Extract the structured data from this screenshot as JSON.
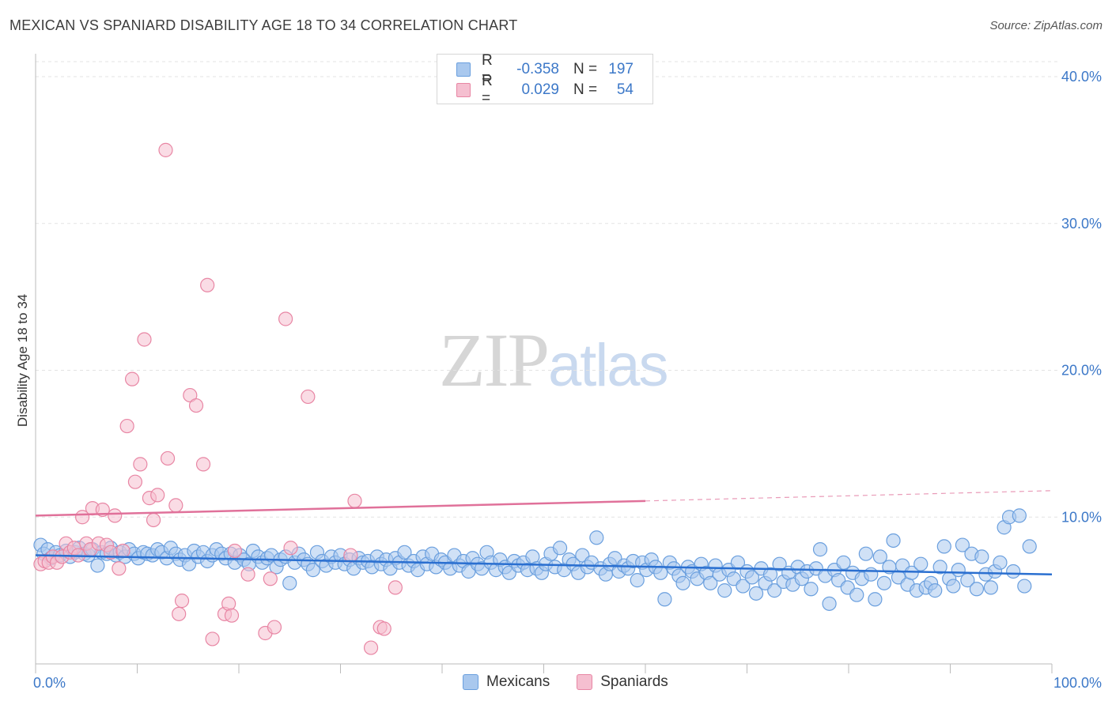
{
  "chart_data": {
    "type": "scatter",
    "title": "MEXICAN VS SPANIARD DISABILITY AGE 18 TO 34 CORRELATION CHART",
    "source": "Source: ZipAtlas.com",
    "ylabel": "Disability Age 18 to 34",
    "xlabel": "",
    "xlim": [
      0,
      100
    ],
    "ylim": [
      0,
      40
    ],
    "x_tick_labels": [
      "0.0%",
      "100.0%"
    ],
    "y_tick_labels": [
      "10.0%",
      "20.0%",
      "30.0%",
      "40.0%"
    ],
    "y_tick_values": [
      10,
      20,
      30,
      40
    ],
    "legend": {
      "rows": [
        {
          "r_label": "R =",
          "r_value": "-0.358",
          "n_label": "N =",
          "n_value": "197"
        },
        {
          "r_label": "R =",
          "r_value": "0.029",
          "n_label": "N =",
          "n_value": "54"
        }
      ]
    },
    "series": [
      {
        "name": "Mexicans",
        "color": "#6a9fde",
        "fill": "#a9c8ee",
        "trend": {
          "x0": 0,
          "y0": 7.4,
          "x1": 100,
          "y1": 6.1
        },
        "points": [
          [
            0.5,
            8.1
          ],
          [
            0.8,
            7.5
          ],
          [
            1.2,
            7.8
          ],
          [
            1.5,
            7.2
          ],
          [
            2,
            7.6
          ],
          [
            2.4,
            7.4
          ],
          [
            3,
            7.7
          ],
          [
            3.4,
            7.3
          ],
          [
            3.9,
            7.6
          ],
          [
            4.3,
            7.9
          ],
          [
            4.8,
            7.5
          ],
          [
            5.2,
            7.4
          ],
          [
            5.6,
            7.8
          ],
          [
            6.1,
            6.7
          ],
          [
            6.5,
            7.6
          ],
          [
            7,
            7.5
          ],
          [
            7.4,
            7.9
          ],
          [
            7.9,
            7.4
          ],
          [
            8.3,
            7.6
          ],
          [
            8.8,
            7.3
          ],
          [
            9.2,
            7.8
          ],
          [
            9.7,
            7.5
          ],
          [
            10.1,
            7.2
          ],
          [
            10.6,
            7.6
          ],
          [
            11,
            7.5
          ],
          [
            11.5,
            7.4
          ],
          [
            12,
            7.8
          ],
          [
            12.4,
            7.6
          ],
          [
            12.9,
            7.2
          ],
          [
            13.3,
            7.9
          ],
          [
            13.8,
            7.5
          ],
          [
            14.2,
            7.1
          ],
          [
            14.7,
            7.4
          ],
          [
            15.1,
            6.8
          ],
          [
            15.6,
            7.7
          ],
          [
            16,
            7.3
          ],
          [
            16.5,
            7.6
          ],
          [
            16.9,
            7.0
          ],
          [
            17.4,
            7.4
          ],
          [
            17.8,
            7.8
          ],
          [
            18.3,
            7.5
          ],
          [
            18.7,
            7.2
          ],
          [
            19.2,
            7.5
          ],
          [
            19.6,
            6.9
          ],
          [
            20.1,
            7.4
          ],
          [
            20.5,
            7.1
          ],
          [
            21,
            6.8
          ],
          [
            21.4,
            7.7
          ],
          [
            21.9,
            7.3
          ],
          [
            22.3,
            6.9
          ],
          [
            22.8,
            7.2
          ],
          [
            23.2,
            7.4
          ],
          [
            23.7,
            6.6
          ],
          [
            24.1,
            7.1
          ],
          [
            24.6,
            7.3
          ],
          [
            25,
            5.5
          ],
          [
            25.5,
            6.9
          ],
          [
            25.9,
            7.5
          ],
          [
            26.4,
            7.1
          ],
          [
            26.8,
            6.8
          ],
          [
            27.3,
            6.4
          ],
          [
            27.7,
            7.6
          ],
          [
            28.2,
            7.0
          ],
          [
            28.6,
            6.7
          ],
          [
            29.1,
            7.3
          ],
          [
            29.5,
            6.9
          ],
          [
            30,
            7.4
          ],
          [
            30.4,
            6.8
          ],
          [
            30.9,
            7.1
          ],
          [
            31.3,
            6.5
          ],
          [
            31.8,
            7.2
          ],
          [
            32.2,
            6.9
          ],
          [
            32.7,
            7.0
          ],
          [
            33.1,
            6.6
          ],
          [
            33.6,
            7.3
          ],
          [
            34,
            6.8
          ],
          [
            34.5,
            7.1
          ],
          [
            34.9,
            6.5
          ],
          [
            35.4,
            7.2
          ],
          [
            35.8,
            6.9
          ],
          [
            36.3,
            7.6
          ],
          [
            36.7,
            6.7
          ],
          [
            37.2,
            7.0
          ],
          [
            37.6,
            6.4
          ],
          [
            38.1,
            7.3
          ],
          [
            38.5,
            6.8
          ],
          [
            39,
            7.5
          ],
          [
            39.4,
            6.6
          ],
          [
            39.9,
            7.1
          ],
          [
            40.3,
            6.9
          ],
          [
            40.8,
            6.5
          ],
          [
            41.2,
            7.4
          ],
          [
            41.7,
            6.7
          ],
          [
            42.1,
            7.0
          ],
          [
            42.6,
            6.3
          ],
          [
            43,
            7.2
          ],
          [
            43.5,
            6.8
          ],
          [
            43.9,
            6.5
          ],
          [
            44.4,
            7.6
          ],
          [
            44.8,
            6.9
          ],
          [
            45.3,
            6.4
          ],
          [
            45.7,
            7.1
          ],
          [
            46.2,
            6.6
          ],
          [
            46.6,
            6.2
          ],
          [
            47.1,
            7.0
          ],
          [
            47.5,
            6.7
          ],
          [
            48,
            6.9
          ],
          [
            48.4,
            6.4
          ],
          [
            48.9,
            7.3
          ],
          [
            49.3,
            6.5
          ],
          [
            49.8,
            6.2
          ],
          [
            50.2,
            6.8
          ],
          [
            50.7,
            7.5
          ],
          [
            51.1,
            6.6
          ],
          [
            51.6,
            7.9
          ],
          [
            52,
            6.4
          ],
          [
            52.5,
            7.1
          ],
          [
            52.9,
            6.8
          ],
          [
            53.4,
            6.2
          ],
          [
            53.8,
            7.4
          ],
          [
            54.3,
            6.6
          ],
          [
            54.7,
            6.9
          ],
          [
            55.2,
            8.6
          ],
          [
            55.6,
            6.5
          ],
          [
            56.1,
            6.1
          ],
          [
            56.5,
            6.8
          ],
          [
            57,
            7.2
          ],
          [
            57.4,
            6.3
          ],
          [
            57.9,
            6.7
          ],
          [
            58.3,
            6.5
          ],
          [
            58.8,
            7.0
          ],
          [
            59.2,
            5.7
          ],
          [
            59.7,
            6.9
          ],
          [
            60.1,
            6.4
          ],
          [
            60.6,
            7.1
          ],
          [
            61,
            6.6
          ],
          [
            61.5,
            6.2
          ],
          [
            61.9,
            4.4
          ],
          [
            62.4,
            6.9
          ],
          [
            62.8,
            6.5
          ],
          [
            63.3,
            6.0
          ],
          [
            63.7,
            5.5
          ],
          [
            64.2,
            6.6
          ],
          [
            64.6,
            6.3
          ],
          [
            65.1,
            5.8
          ],
          [
            65.5,
            6.8
          ],
          [
            66,
            6.2
          ],
          [
            66.4,
            5.5
          ],
          [
            66.9,
            6.7
          ],
          [
            67.3,
            6.1
          ],
          [
            67.8,
            5.0
          ],
          [
            68.2,
            6.4
          ],
          [
            68.7,
            5.8
          ],
          [
            69.1,
            6.9
          ],
          [
            69.6,
            5.3
          ],
          [
            70,
            6.3
          ],
          [
            70.5,
            5.9
          ],
          [
            70.9,
            4.8
          ],
          [
            71.4,
            6.5
          ],
          [
            71.8,
            5.5
          ],
          [
            72.3,
            6.1
          ],
          [
            72.7,
            5.0
          ],
          [
            73.2,
            6.8
          ],
          [
            73.6,
            5.6
          ],
          [
            74.1,
            6.2
          ],
          [
            74.5,
            5.4
          ],
          [
            75,
            6.6
          ],
          [
            75.4,
            5.8
          ],
          [
            75.9,
            6.3
          ],
          [
            76.3,
            5.1
          ],
          [
            76.8,
            6.5
          ],
          [
            77.2,
            7.8
          ],
          [
            77.7,
            6.0
          ],
          [
            78.1,
            4.1
          ],
          [
            78.6,
            6.4
          ],
          [
            79,
            5.7
          ],
          [
            79.5,
            6.9
          ],
          [
            79.9,
            5.2
          ],
          [
            80.4,
            6.2
          ],
          [
            80.8,
            4.7
          ],
          [
            81.3,
            5.8
          ],
          [
            81.7,
            7.5
          ],
          [
            82.2,
            6.1
          ],
          [
            82.6,
            4.4
          ],
          [
            83.1,
            7.3
          ],
          [
            83.5,
            5.5
          ],
          [
            84,
            6.6
          ],
          [
            84.4,
            8.4
          ],
          [
            84.9,
            5.9
          ],
          [
            85.3,
            6.7
          ],
          [
            85.8,
            5.4
          ],
          [
            86.2,
            6.2
          ],
          [
            86.7,
            5.0
          ],
          [
            87.1,
            6.8
          ],
          [
            87.6,
            5.2
          ],
          [
            88.1,
            5.5
          ],
          [
            88.5,
            5.0
          ],
          [
            89,
            6.6
          ],
          [
            89.4,
            8.0
          ],
          [
            89.9,
            5.8
          ],
          [
            90.3,
            5.3
          ],
          [
            90.8,
            6.4
          ],
          [
            91.2,
            8.1
          ],
          [
            91.7,
            5.7
          ],
          [
            92.1,
            7.5
          ],
          [
            92.6,
            5.1
          ],
          [
            93.1,
            7.3
          ],
          [
            93.5,
            6.1
          ],
          [
            94,
            5.2
          ],
          [
            94.4,
            6.3
          ],
          [
            94.9,
            6.9
          ],
          [
            95.3,
            9.3
          ],
          [
            95.8,
            10.0
          ],
          [
            96.2,
            6.3
          ],
          [
            96.8,
            10.1
          ],
          [
            97.3,
            5.3
          ],
          [
            97.8,
            8.0
          ]
        ]
      },
      {
        "name": "Spaniards",
        "color": "#e886a4",
        "fill": "#f5bfd0",
        "trend": {
          "x0": 0,
          "y0": 10.1,
          "x1": 60,
          "y1": 11.1,
          "dash_x1": 100,
          "dash_y1": 11.8
        },
        "points": [
          [
            0.5,
            6.8
          ],
          [
            0.9,
            7.0
          ],
          [
            1.3,
            6.9
          ],
          [
            1.7,
            7.3
          ],
          [
            2.1,
            6.9
          ],
          [
            2.6,
            7.3
          ],
          [
            3,
            8.2
          ],
          [
            3.4,
            7.6
          ],
          [
            3.8,
            7.9
          ],
          [
            4.2,
            7.4
          ],
          [
            4.6,
            10.0
          ],
          [
            5,
            8.2
          ],
          [
            5.4,
            7.8
          ],
          [
            5.6,
            10.6
          ],
          [
            6.2,
            8.2
          ],
          [
            6.6,
            10.5
          ],
          [
            7,
            8.1
          ],
          [
            7.4,
            7.6
          ],
          [
            7.8,
            10.1
          ],
          [
            8.2,
            6.5
          ],
          [
            8.6,
            7.7
          ],
          [
            9,
            16.2
          ],
          [
            9.5,
            19.4
          ],
          [
            9.8,
            12.4
          ],
          [
            10.3,
            13.6
          ],
          [
            10.7,
            22.1
          ],
          [
            11.2,
            11.3
          ],
          [
            11.6,
            9.8
          ],
          [
            12,
            11.5
          ],
          [
            12.8,
            35.0
          ],
          [
            13,
            14.0
          ],
          [
            13.8,
            10.8
          ],
          [
            14.1,
            3.4
          ],
          [
            14.4,
            4.3
          ],
          [
            15.2,
            18.3
          ],
          [
            15.8,
            17.6
          ],
          [
            16.5,
            13.6
          ],
          [
            16.9,
            25.8
          ],
          [
            17.4,
            1.7
          ],
          [
            18.6,
            3.4
          ],
          [
            19,
            4.1
          ],
          [
            19.3,
            3.3
          ],
          [
            19.6,
            7.7
          ],
          [
            20.9,
            6.1
          ],
          [
            22.6,
            2.1
          ],
          [
            23.1,
            5.8
          ],
          [
            23.5,
            2.5
          ],
          [
            25.1,
            7.9
          ],
          [
            24.6,
            23.5
          ],
          [
            26.8,
            18.2
          ],
          [
            31,
            7.4
          ],
          [
            31.4,
            11.1
          ],
          [
            33,
            1.1
          ],
          [
            33.9,
            2.5
          ],
          [
            34.3,
            2.4
          ],
          [
            35.4,
            5.2
          ]
        ]
      }
    ],
    "bottom_legend": [
      "Mexicans",
      "Spaniards"
    ],
    "watermark": {
      "part1": "ZIP",
      "part2": "atlas"
    }
  }
}
